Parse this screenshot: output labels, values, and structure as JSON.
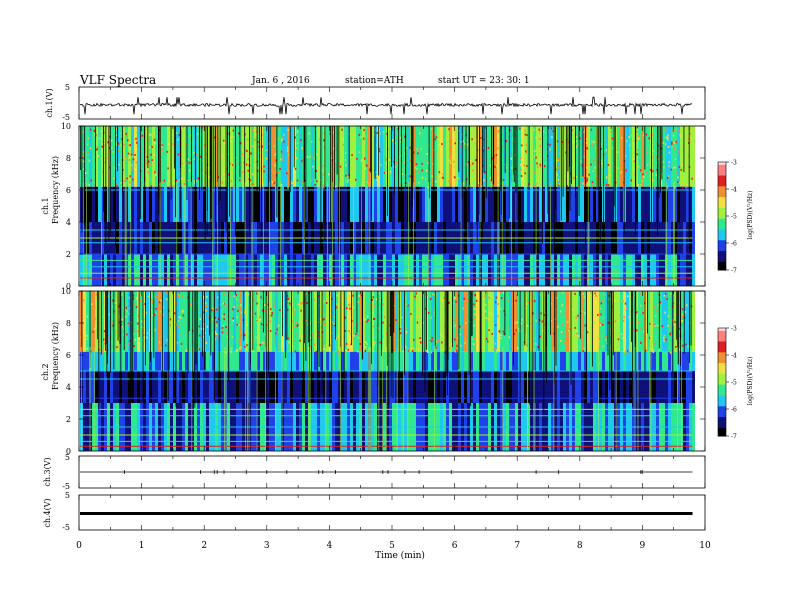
{
  "header": {
    "title": "VLF Spectra",
    "date": "Jan. 6 , 2016",
    "station": "station=ATH",
    "start": "start UT = 23: 30: 1"
  },
  "chart_data": [
    {
      "id": "ch1-waveform",
      "type": "line",
      "ylabel": "ch.1(V)",
      "ylim": [
        -5,
        5
      ],
      "yticks": [
        "5",
        "-5"
      ],
      "description_values": "waveform near -0.5 V with frequent sferic spikes"
    },
    {
      "id": "ch1-spectrogram",
      "type": "heatmap",
      "ylabel_channel": "ch.1",
      "ylabel": "Frequency (kHz)",
      "ylim": [
        0,
        10
      ],
      "yticks": [
        "0",
        "2",
        "4",
        "6",
        "8",
        "10"
      ],
      "colorbar": {
        "label": "log(PSD)(V²/Hz)",
        "range": [
          -7,
          -3
        ],
        "ticks": [
          "-3",
          "-4",
          "-5",
          "-6",
          "-7"
        ]
      }
    },
    {
      "id": "ch2-spectrogram",
      "type": "heatmap",
      "ylabel_channel": "ch.2",
      "ylabel": "Frequency (kHz)",
      "ylim": [
        0,
        10
      ],
      "yticks": [
        "0",
        "2",
        "4",
        "6",
        "8",
        "10"
      ],
      "colorbar": {
        "label": "log(PSD)(V²/Hz)",
        "range": [
          -7,
          -3
        ],
        "ticks": [
          "-3",
          "-4",
          "-5",
          "-6",
          "-7"
        ]
      }
    },
    {
      "id": "ch3-waveform",
      "type": "line",
      "ylabel": "ch.3(V)",
      "ylim": [
        -5,
        5
      ],
      "yticks": [
        "5",
        "-5"
      ]
    },
    {
      "id": "ch4-waveform",
      "type": "line",
      "ylabel": "ch.4(V)",
      "ylim": [
        -5,
        5
      ],
      "yticks": [
        "5",
        "-5"
      ],
      "level": -0.3
    }
  ],
  "x_axis": {
    "label": "Time (min)",
    "range": [
      0,
      10
    ],
    "ticks": [
      "0",
      "1",
      "2",
      "3",
      "4",
      "5",
      "6",
      "7",
      "8",
      "9",
      "10"
    ],
    "data_end": 9.8
  },
  "colormap": [
    "#000000",
    "#10107a",
    "#2040e8",
    "#20c8f0",
    "#30e890",
    "#a0f040",
    "#f0e040",
    "#f09030",
    "#e02020",
    "#ff8080",
    "#ffe0e0"
  ]
}
